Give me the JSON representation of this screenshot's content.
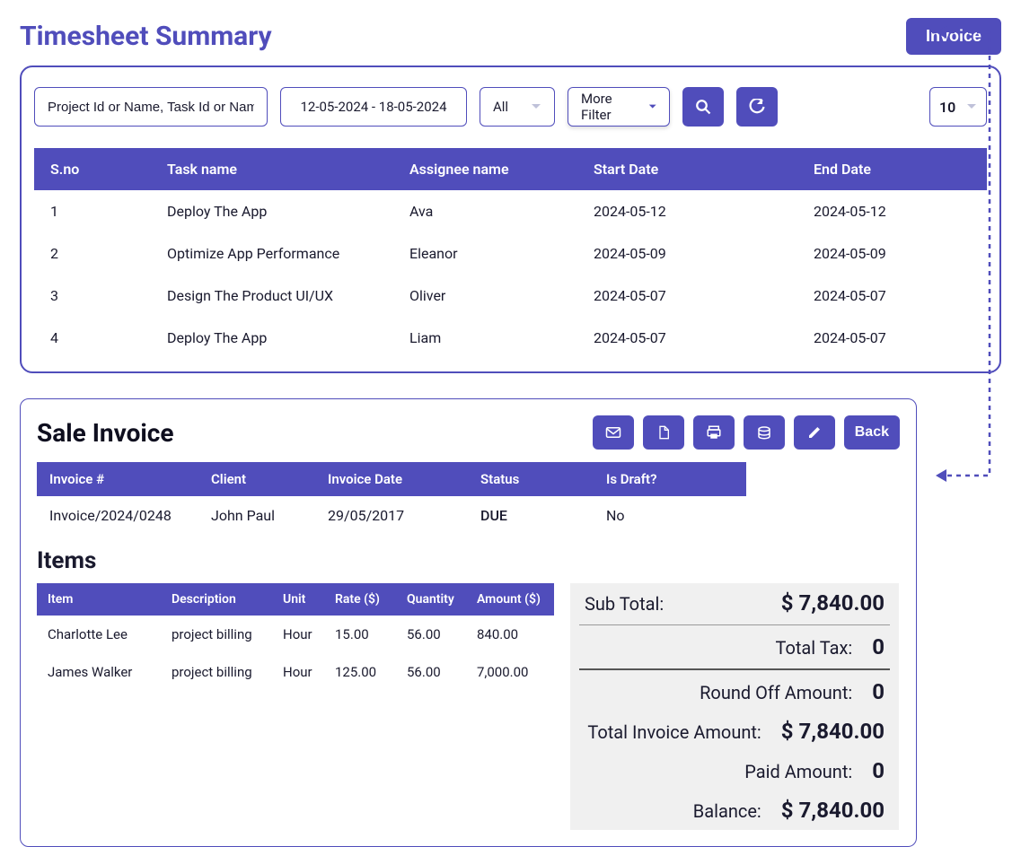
{
  "page": {
    "title": "Timesheet Summary",
    "invoice_button_label": "Invoice"
  },
  "filters": {
    "project_placeholder": "Project Id or Name, Task Id or Name",
    "date_range": "12-05-2024 - 18-05-2024",
    "all_label": "All",
    "more_filter_label": "More Filter",
    "page_size": "10"
  },
  "timesheet": {
    "columns": {
      "sno": "S.no",
      "task": "Task name",
      "assignee": "Assignee name",
      "start": "Start Date",
      "end": "End Date"
    },
    "rows": [
      {
        "sno": "1",
        "task": "Deploy The App",
        "assignee": "Ava",
        "start": "2024-05-12",
        "end": "2024-05-12"
      },
      {
        "sno": "2",
        "task": "Optimize App Performance",
        "assignee": "Eleanor",
        "start": "2024-05-09",
        "end": "2024-05-09"
      },
      {
        "sno": "3",
        "task": "Design The Product UI/UX",
        "assignee": "Oliver",
        "start": "2024-05-07",
        "end": "2024-05-07"
      },
      {
        "sno": "4",
        "task": "Deploy The App",
        "assignee": "Liam",
        "start": "2024-05-07",
        "end": "2024-05-07"
      }
    ]
  },
  "invoice": {
    "title": "Sale Invoice",
    "back_label": "Back",
    "summary_columns": {
      "num": "Invoice #",
      "client": "Client",
      "date": "Invoice Date",
      "status": "Status",
      "draft": "Is Draft?"
    },
    "summary": {
      "num": "Invoice/2024/0248",
      "client": "John Paul",
      "date": "29/05/2017",
      "status": "DUE",
      "draft": "No"
    },
    "items_title": "Items",
    "items_columns": {
      "item": "Item",
      "desc": "Description",
      "unit": "Unit",
      "rate": "Rate ($)",
      "qty": "Quantity",
      "amount": "Amount ($)"
    },
    "items": [
      {
        "item": "Charlotte Lee",
        "desc": "project billing",
        "unit": "Hour",
        "rate": "15.00",
        "qty": "56.00",
        "amount": "840.00"
      },
      {
        "item": "James Walker",
        "desc": "project billing",
        "unit": "Hour",
        "rate": "125.00",
        "qty": "56.00",
        "amount": "7,000.00"
      }
    ],
    "totals": {
      "subtotal_label": "Sub Total:",
      "subtotal_value": "$ 7,840.00",
      "tax_label": "Total Tax:",
      "tax_value": "0",
      "roundoff_label": "Round Off Amount:",
      "roundoff_value": "0",
      "total_label": "Total Invoice Amount:",
      "total_value": "$ 7,840.00",
      "paid_label": "Paid Amount:",
      "paid_value": "0",
      "balance_label": "Balance:",
      "balance_value": "$ 7,840.00"
    }
  },
  "colors": {
    "primary": "#504dbb",
    "status_due": "#d62828",
    "totals_bg": "#f0f0f0"
  }
}
